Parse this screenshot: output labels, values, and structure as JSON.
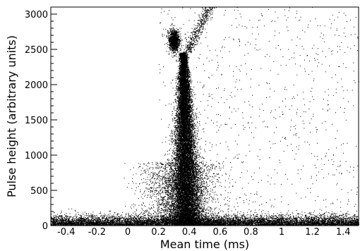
{
  "chart_data": {
    "type": "scatter",
    "title": "",
    "xlabel": "Mean time (ms)",
    "ylabel": "Pulse height (arbitrary units)",
    "xlim": [
      -0.5,
      1.5
    ],
    "ylim": [
      0,
      3100
    ],
    "x_ticks": [
      -0.4,
      -0.2,
      0,
      0.2,
      0.4,
      0.6,
      0.8,
      1,
      1.2,
      1.4
    ],
    "x_tick_labels": [
      "-0.4",
      "-0.2",
      "0",
      "0.2",
      "0.4",
      "0.6",
      "0.8",
      "1",
      "1.2",
      "1.4"
    ],
    "y_ticks": [
      0,
      500,
      1000,
      1500,
      2000,
      2500,
      3000
    ],
    "y_tick_labels": [
      "0",
      "500",
      "1000",
      "1500",
      "2000",
      "2500",
      "3000"
    ],
    "grid": false,
    "legend": "none",
    "point_color": "#000000",
    "series": [
      {
        "features": [
          {
            "kind": "baseline_band",
            "x_range": [
              -0.5,
              1.5
            ],
            "y_range": [
              0,
              150
            ]
          },
          {
            "kind": "main_peak",
            "x_center": 0.38,
            "y_max": 2450,
            "width_at_base": 0.16,
            "width_at_top": 0.03
          },
          {
            "kind": "cluster",
            "x_center": 0.3,
            "y_center": 2620,
            "x_spread": 0.03,
            "y_spread": 130
          },
          {
            "kind": "diffuse_tail",
            "x_range": [
              0.2,
              1.5
            ],
            "y_range": [
              0,
              3100
            ]
          }
        ]
      }
    ]
  }
}
